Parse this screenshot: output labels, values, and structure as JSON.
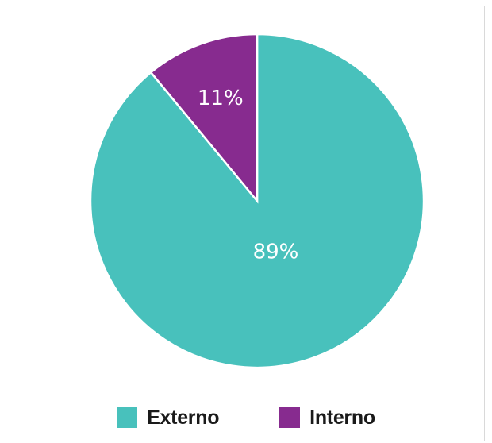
{
  "chart_data": {
    "type": "pie",
    "slices": [
      {
        "label": "Externo",
        "value": 89,
        "display": "89%",
        "color": "#48c1bc"
      },
      {
        "label": "Interno",
        "value": 11,
        "display": "11%",
        "color": "#872b8f"
      }
    ],
    "legend_position": "bottom"
  }
}
